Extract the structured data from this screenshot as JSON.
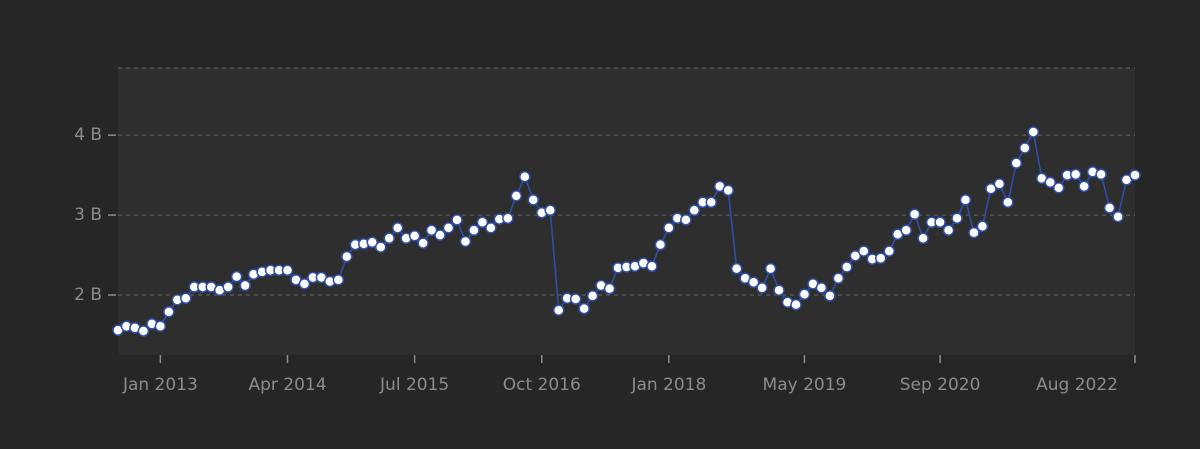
{
  "chart_data": {
    "type": "line",
    "x": [
      "2012-08",
      "2012-09",
      "2012-10",
      "2012-11",
      "2012-12",
      "2013-01",
      "2013-02",
      "2013-03",
      "2013-04",
      "2013-05",
      "2013-06",
      "2013-07",
      "2013-08",
      "2013-09",
      "2013-10",
      "2013-11",
      "2013-12",
      "2014-01",
      "2014-02",
      "2014-03",
      "2014-04",
      "2014-05",
      "2014-06",
      "2014-07",
      "2014-08",
      "2014-09",
      "2014-10",
      "2014-11",
      "2014-12",
      "2015-01",
      "2015-02",
      "2015-03",
      "2015-04",
      "2015-05",
      "2015-06",
      "2015-07",
      "2015-08",
      "2015-09",
      "2015-10",
      "2015-11",
      "2015-12",
      "2016-01",
      "2016-02",
      "2016-03",
      "2016-04",
      "2016-05",
      "2016-06",
      "2016-07",
      "2016-08",
      "2016-09",
      "2016-10",
      "2016-11",
      "2016-12",
      "2017-01",
      "2017-02",
      "2017-03",
      "2017-04",
      "2017-05",
      "2017-06",
      "2017-07",
      "2017-08",
      "2017-09",
      "2017-10",
      "2017-11",
      "2017-12",
      "2018-01",
      "2018-02",
      "2018-03",
      "2018-04",
      "2018-05",
      "2018-06",
      "2018-07",
      "2018-08",
      "2018-09",
      "2018-10",
      "2018-11",
      "2018-12",
      "2019-01",
      "2019-02",
      "2019-03",
      "2019-04",
      "2019-05",
      "2019-06",
      "2019-07",
      "2019-08",
      "2019-09",
      "2019-10",
      "2019-11",
      "2019-12",
      "2020-01",
      "2020-02",
      "2020-03",
      "2020-04",
      "2020-05",
      "2020-06",
      "2020-07",
      "2020-08",
      "2020-09",
      "2020-10",
      "2020-11",
      "2020-12",
      "2021-01",
      "2021-02",
      "2021-03",
      "2021-04",
      "2021-05",
      "2021-06",
      "2021-07",
      "2021-08",
      "2021-09",
      "2021-10",
      "2021-11",
      "2021-12",
      "2022-01",
      "2022-02",
      "2022-03",
      "2022-04",
      "2022-05",
      "2022-06",
      "2022-07",
      "2022-08"
    ],
    "values": [
      1.56,
      1.61,
      1.59,
      1.55,
      1.64,
      1.61,
      1.79,
      1.94,
      1.96,
      2.1,
      2.1,
      2.1,
      2.06,
      2.1,
      2.23,
      2.12,
      2.26,
      2.29,
      2.31,
      2.31,
      2.31,
      2.19,
      2.14,
      2.22,
      2.22,
      2.17,
      2.19,
      2.48,
      2.63,
      2.64,
      2.66,
      2.6,
      2.71,
      2.84,
      2.71,
      2.74,
      2.65,
      2.81,
      2.75,
      2.84,
      2.94,
      2.67,
      2.81,
      2.91,
      2.84,
      2.95,
      2.96,
      3.24,
      3.48,
      3.19,
      3.03,
      3.06,
      1.81,
      1.96,
      1.95,
      1.83,
      1.99,
      2.12,
      2.08,
      2.34,
      2.35,
      2.36,
      2.4,
      2.36,
      2.63,
      2.84,
      2.96,
      2.94,
      3.06,
      3.16,
      3.16,
      3.36,
      3.31,
      2.33,
      2.21,
      2.16,
      2.09,
      2.33,
      2.06,
      1.91,
      1.88,
      2.01,
      2.14,
      2.09,
      1.99,
      2.21,
      2.35,
      2.49,
      2.55,
      2.45,
      2.46,
      2.55,
      2.76,
      2.81,
      3.01,
      2.71,
      2.91,
      2.91,
      2.81,
      2.96,
      3.19,
      2.78,
      2.86,
      3.33,
      3.39,
      3.16,
      3.65,
      3.84,
      4.04,
      3.46,
      3.41,
      3.34,
      3.5,
      3.51,
      3.36,
      3.54,
      3.51,
      3.09,
      2.98,
      3.44,
      3.5
    ],
    "color": "#2f4fa8",
    "xlim": [
      "2012-08",
      "2022-08"
    ],
    "xticks": [
      {
        "value": "2013-01",
        "label": "Jan 2013"
      },
      {
        "value": "2014-04",
        "label": "Apr 2014"
      },
      {
        "value": "2015-07",
        "label": "Jul 2015"
      },
      {
        "value": "2016-10",
        "label": "Oct 2016"
      },
      {
        "value": "2018-01",
        "label": "Jan 2018"
      },
      {
        "value": "2019-05",
        "label": "May 2019"
      },
      {
        "value": "2020-09",
        "label": "Sep 2020"
      },
      {
        "value": "2022-08",
        "label": "Aug 2022"
      }
    ],
    "ylim": [
      1.25,
      4.84
    ],
    "yticks": [
      {
        "value": 2,
        "label": "2 B"
      },
      {
        "value": 3,
        "label": "3 B"
      },
      {
        "value": 4,
        "label": "4 B"
      }
    ],
    "grid": true
  }
}
